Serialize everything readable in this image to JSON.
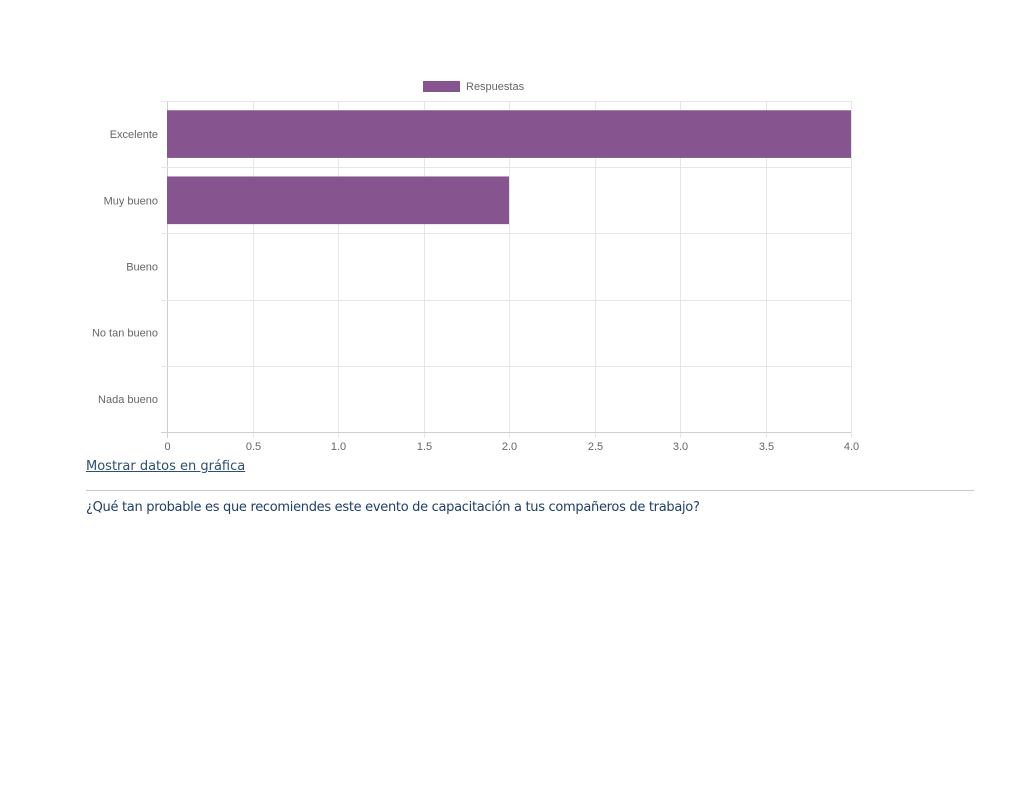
{
  "chart_data": {
    "type": "bar",
    "orientation": "horizontal",
    "categories": [
      "Excelente",
      "Muy bueno",
      "Bueno",
      "No tan bueno",
      "Nada bueno"
    ],
    "series": [
      {
        "name": "Respuestas",
        "values": [
          4,
          2,
          0,
          0,
          0
        ]
      }
    ],
    "xlim": [
      0,
      4
    ],
    "x_ticks": [
      "0",
      "0.5",
      "1.0",
      "1.5",
      "2.0",
      "2.5",
      "3.0",
      "3.5",
      "4.0"
    ],
    "grid": true,
    "legend_position": "top",
    "bar_color": "#86548f"
  },
  "links": {
    "show_data": "Mostrar datos en gráfica"
  },
  "question": {
    "text": "¿Qué tan probable es que recomiendes este evento de capacitación a tus compañeros de trabajo?"
  }
}
